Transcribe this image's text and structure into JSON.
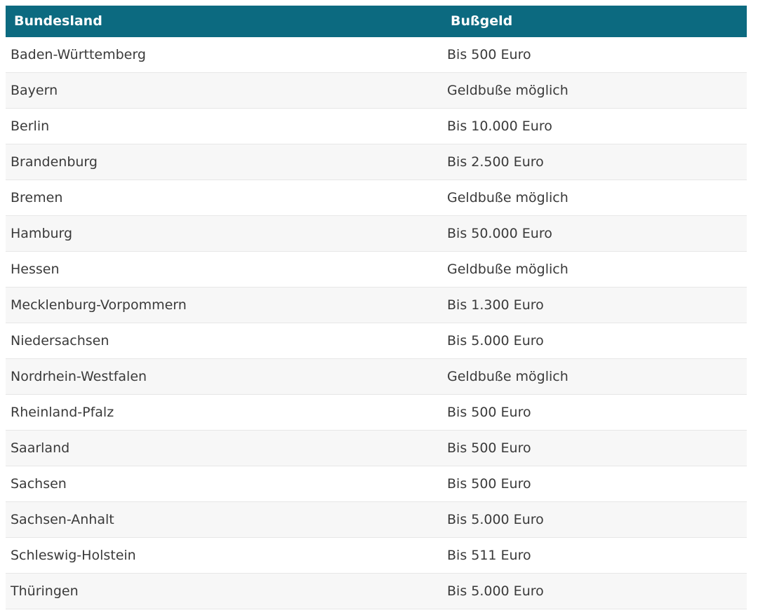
{
  "colors": {
    "header_background": "#0c6a80",
    "header_text": "#ffffff",
    "row_text": "#3a3a3a",
    "alt_row_background": "#f7f7f7",
    "row_border": "#e7e7e7",
    "page_background": "#ffffff"
  },
  "chart_data": {
    "type": "table",
    "columns": [
      "Bundesland",
      "Bußgeld"
    ],
    "rows": [
      [
        "Baden-Württemberg",
        "Bis 500 Euro"
      ],
      [
        "Bayern",
        "Geldbuße möglich"
      ],
      [
        "Berlin",
        "Bis 10.000 Euro"
      ],
      [
        "Brandenburg",
        "Bis 2.500 Euro"
      ],
      [
        "Bremen",
        "Geldbuße möglich"
      ],
      [
        "Hamburg",
        "Bis 50.000 Euro"
      ],
      [
        "Hessen",
        "Geldbuße möglich"
      ],
      [
        "Mecklenburg-Vorpommern",
        "Bis 1.300 Euro"
      ],
      [
        "Niedersachsen",
        "Bis 5.000 Euro"
      ],
      [
        "Nordrhein-Westfalen",
        "Geldbuße möglich"
      ],
      [
        "Rheinland-Pfalz",
        "Bis 500 Euro"
      ],
      [
        "Saarland",
        "Bis 500 Euro"
      ],
      [
        "Sachsen",
        "Bis 500 Euro"
      ],
      [
        "Sachsen-Anhalt",
        "Bis 5.000 Euro"
      ],
      [
        "Schleswig-Holstein",
        "Bis 511 Euro"
      ],
      [
        "Thüringen",
        "Bis 5.000 Euro"
      ]
    ],
    "layout": {
      "legend": "none",
      "grid": "horizontal-row-borders",
      "zebra_striping": true
    }
  }
}
